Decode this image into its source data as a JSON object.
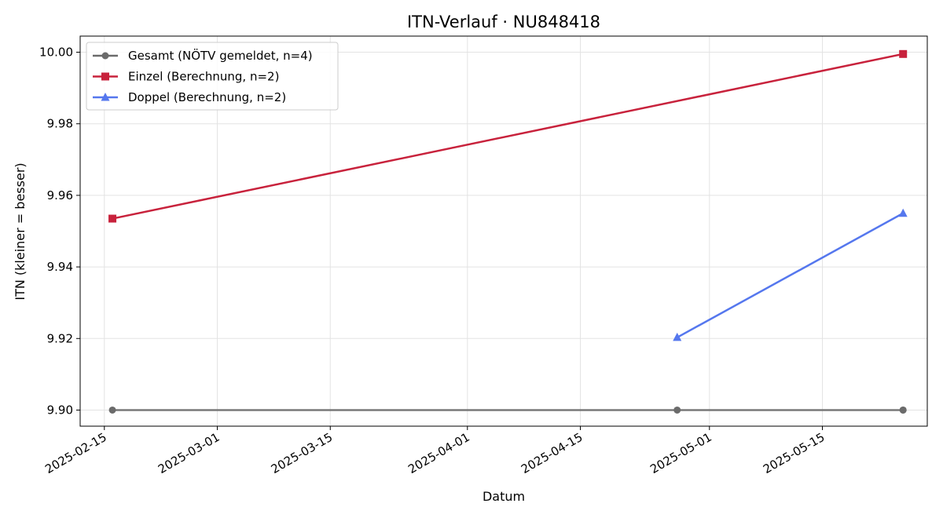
{
  "chart_data": {
    "type": "line",
    "title": "ITN-Verlauf · NU848418",
    "xlabel": "Datum",
    "ylabel": "ITN  (kleiner = besser)",
    "x_type": "date",
    "xlim": [
      "2025-02-12",
      "2025-05-28"
    ],
    "ylim": [
      9.8955,
      10.0045
    ],
    "x_ticks": [
      "2025-02-15",
      "2025-03-01",
      "2025-03-15",
      "2025-04-01",
      "2025-04-15",
      "2025-05-01",
      "2025-05-15"
    ],
    "y_ticks": [
      "9.90",
      "9.92",
      "9.94",
      "9.96",
      "9.98",
      "10.00"
    ],
    "grid": true,
    "legend_position": "top-left",
    "series": [
      {
        "name": "Gesamt (NÖTV gemeldet, n=4)",
        "color": "#6b6b6b",
        "marker": "circle",
        "points": [
          {
            "x": "2025-02-16",
            "y": 9.9
          },
          {
            "x": "2025-04-27",
            "y": 9.9
          },
          {
            "x": "2025-05-25",
            "y": 9.9
          },
          {
            "x": "2025-05-25",
            "y": 9.9
          }
        ]
      },
      {
        "name": "Einzel (Berechnung, n=2)",
        "color": "#c8223c",
        "marker": "square",
        "points": [
          {
            "x": "2025-02-16",
            "y": 9.9535
          },
          {
            "x": "2025-05-25",
            "y": 9.9995
          }
        ]
      },
      {
        "name": "Doppel (Berechnung, n=2)",
        "color": "#5577ee",
        "marker": "triangle",
        "points": [
          {
            "x": "2025-04-27",
            "y": 9.9203
          },
          {
            "x": "2025-05-25",
            "y": 9.955
          }
        ]
      }
    ]
  }
}
